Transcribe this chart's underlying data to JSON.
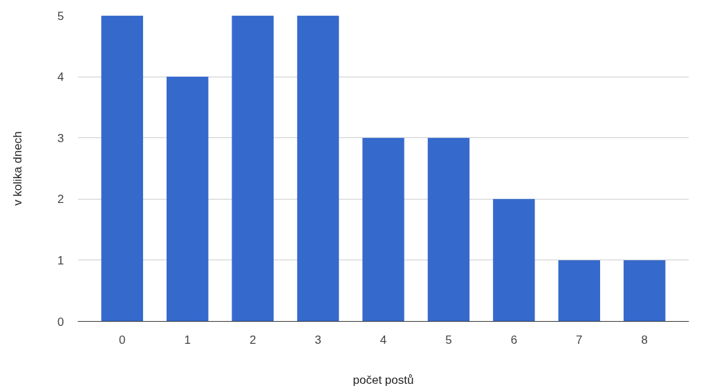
{
  "chart_data": {
    "type": "bar",
    "xlabel": "počet postů",
    "ylabel": "v kolika dnech",
    "categories": [
      "0",
      "1",
      "2",
      "3",
      "4",
      "5",
      "6",
      "7",
      "8"
    ],
    "values": [
      5,
      4,
      5,
      5,
      3,
      3,
      2,
      1,
      1
    ],
    "color": "#3669cc",
    "ylim": [
      0,
      5
    ],
    "yticks": [
      0,
      1,
      2,
      3,
      4,
      5
    ],
    "grid": "y"
  }
}
